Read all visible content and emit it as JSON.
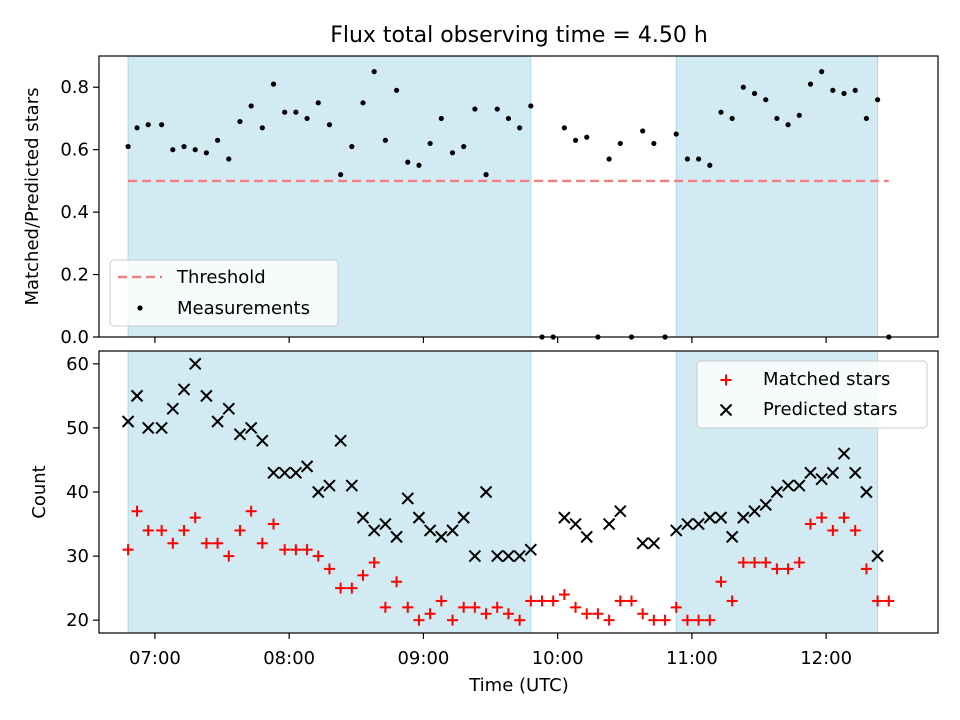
{
  "title": "Flux total observing time = 4.50 h",
  "colors": {
    "shade": "#add8e6",
    "threshold": "#f08080",
    "matched": "#ff0000",
    "predicted": "#000000"
  },
  "chart_data": [
    {
      "type": "scatter",
      "panel": "top",
      "title": "Flux total observing time = 4.50 h",
      "xlabel": "",
      "ylabel": "Matched/Predicted stars",
      "xlim": [
        "06:35",
        "12:50"
      ],
      "ylim": [
        0,
        0.9
      ],
      "yticks": [
        0.0,
        0.2,
        0.4,
        0.6,
        0.8
      ],
      "ytick_labels": [
        "0.0",
        "0.2",
        "0.4",
        "0.6",
        "0.8"
      ],
      "legend": {
        "placement": "lower-left",
        "entries": [
          "Threshold",
          "Measurements"
        ]
      },
      "shaded_intervals": [
        [
          "06:48",
          "09:48"
        ],
        [
          "10:53",
          "12:23"
        ]
      ],
      "threshold": {
        "name": "Threshold",
        "y": 0.5,
        "x_range": [
          "06:48",
          "12:28"
        ]
      },
      "series": [
        {
          "name": "Measurements",
          "points": [
            [
              "06:48",
              0.61
            ],
            [
              "06:52",
              0.67
            ],
            [
              "06:57",
              0.68
            ],
            [
              "07:03",
              0.68
            ],
            [
              "07:08",
              0.6
            ],
            [
              "07:13",
              0.61
            ],
            [
              "07:18",
              0.6
            ],
            [
              "07:23",
              0.59
            ],
            [
              "07:28",
              0.63
            ],
            [
              "07:33",
              0.57
            ],
            [
              "07:38",
              0.69
            ],
            [
              "07:43",
              0.74
            ],
            [
              "07:48",
              0.67
            ],
            [
              "07:53",
              0.81
            ],
            [
              "07:58",
              0.72
            ],
            [
              "08:03",
              0.72
            ],
            [
              "08:08",
              0.7
            ],
            [
              "08:13",
              0.75
            ],
            [
              "08:18",
              0.68
            ],
            [
              "08:23",
              0.52
            ],
            [
              "08:28",
              0.61
            ],
            [
              "08:33",
              0.75
            ],
            [
              "08:38",
              0.85
            ],
            [
              "08:43",
              0.63
            ],
            [
              "08:48",
              0.79
            ],
            [
              "08:53",
              0.56
            ],
            [
              "08:58",
              0.55
            ],
            [
              "09:03",
              0.62
            ],
            [
              "09:08",
              0.7
            ],
            [
              "09:13",
              0.59
            ],
            [
              "09:18",
              0.61
            ],
            [
              "09:23",
              0.73
            ],
            [
              "09:28",
              0.52
            ],
            [
              "09:33",
              0.73
            ],
            [
              "09:38",
              0.7
            ],
            [
              "09:43",
              0.67
            ],
            [
              "09:48",
              0.74
            ],
            [
              "09:53",
              0.0
            ],
            [
              "09:58",
              0.0
            ],
            [
              "10:03",
              0.67
            ],
            [
              "10:08",
              0.63
            ],
            [
              "10:13",
              0.64
            ],
            [
              "10:18",
              0.0
            ],
            [
              "10:23",
              0.57
            ],
            [
              "10:28",
              0.62
            ],
            [
              "10:33",
              0.0
            ],
            [
              "10:38",
              0.66
            ],
            [
              "10:43",
              0.62
            ],
            [
              "10:48",
              0.0
            ],
            [
              "10:53",
              0.65
            ],
            [
              "10:58",
              0.57
            ],
            [
              "11:03",
              0.57
            ],
            [
              "11:08",
              0.55
            ],
            [
              "11:13",
              0.72
            ],
            [
              "11:18",
              0.7
            ],
            [
              "11:23",
              0.8
            ],
            [
              "11:28",
              0.78
            ],
            [
              "11:33",
              0.76
            ],
            [
              "11:38",
              0.7
            ],
            [
              "11:43",
              0.68
            ],
            [
              "11:48",
              0.71
            ],
            [
              "11:53",
              0.81
            ],
            [
              "11:58",
              0.85
            ],
            [
              "12:03",
              0.79
            ],
            [
              "12:08",
              0.78
            ],
            [
              "12:13",
              0.79
            ],
            [
              "12:18",
              0.7
            ],
            [
              "12:23",
              0.76
            ],
            [
              "12:28",
              0.0
            ]
          ]
        }
      ]
    },
    {
      "type": "scatter",
      "panel": "bottom",
      "title": "",
      "xlabel": "Time (UTC)",
      "ylabel": "Count",
      "xlim": [
        "06:35",
        "12:50"
      ],
      "ylim": [
        18,
        62
      ],
      "xticks": [
        "07:00",
        "08:00",
        "09:00",
        "10:00",
        "11:00",
        "12:00"
      ],
      "yticks": [
        20,
        30,
        40,
        50,
        60
      ],
      "ytick_labels": [
        "20",
        "30",
        "40",
        "50",
        "60"
      ],
      "legend": {
        "placement": "upper-right",
        "entries": [
          "Matched stars",
          "Predicted stars"
        ]
      },
      "shaded_intervals": [
        [
          "06:48",
          "09:48"
        ],
        [
          "10:53",
          "12:23"
        ]
      ],
      "series": [
        {
          "name": "Matched stars",
          "marker": "plus",
          "points": [
            [
              "06:48",
              31
            ],
            [
              "06:52",
              37
            ],
            [
              "06:57",
              34
            ],
            [
              "07:03",
              34
            ],
            [
              "07:08",
              32
            ],
            [
              "07:13",
              34
            ],
            [
              "07:18",
              36
            ],
            [
              "07:23",
              32
            ],
            [
              "07:28",
              32
            ],
            [
              "07:33",
              30
            ],
            [
              "07:38",
              34
            ],
            [
              "07:43",
              37
            ],
            [
              "07:48",
              32
            ],
            [
              "07:53",
              35
            ],
            [
              "07:58",
              31
            ],
            [
              "08:03",
              31
            ],
            [
              "08:08",
              31
            ],
            [
              "08:13",
              30
            ],
            [
              "08:18",
              28
            ],
            [
              "08:23",
              25
            ],
            [
              "08:28",
              25
            ],
            [
              "08:33",
              27
            ],
            [
              "08:38",
              29
            ],
            [
              "08:43",
              22
            ],
            [
              "08:48",
              26
            ],
            [
              "08:53",
              22
            ],
            [
              "08:58",
              20
            ],
            [
              "09:03",
              21
            ],
            [
              "09:08",
              23
            ],
            [
              "09:13",
              20
            ],
            [
              "09:18",
              22
            ],
            [
              "09:23",
              22
            ],
            [
              "09:28",
              21
            ],
            [
              "09:33",
              22
            ],
            [
              "09:38",
              21
            ],
            [
              "09:43",
              20
            ],
            [
              "09:48",
              23
            ],
            [
              "09:53",
              23
            ],
            [
              "09:58",
              23
            ],
            [
              "10:03",
              24
            ],
            [
              "10:08",
              22
            ],
            [
              "10:13",
              21
            ],
            [
              "10:18",
              21
            ],
            [
              "10:23",
              20
            ],
            [
              "10:28",
              23
            ],
            [
              "10:33",
              23
            ],
            [
              "10:38",
              21
            ],
            [
              "10:43",
              20
            ],
            [
              "10:48",
              20
            ],
            [
              "10:53",
              22
            ],
            [
              "10:58",
              20
            ],
            [
              "11:03",
              20
            ],
            [
              "11:08",
              20
            ],
            [
              "11:13",
              26
            ],
            [
              "11:18",
              23
            ],
            [
              "11:23",
              29
            ],
            [
              "11:28",
              29
            ],
            [
              "11:33",
              29
            ],
            [
              "11:38",
              28
            ],
            [
              "11:43",
              28
            ],
            [
              "11:48",
              29
            ],
            [
              "11:53",
              35
            ],
            [
              "11:58",
              36
            ],
            [
              "12:03",
              34
            ],
            [
              "12:08",
              36
            ],
            [
              "12:13",
              34
            ],
            [
              "12:18",
              28
            ],
            [
              "12:23",
              23
            ],
            [
              "12:28",
              23
            ]
          ]
        },
        {
          "name": "Predicted stars",
          "marker": "cross",
          "points": [
            [
              "06:48",
              51
            ],
            [
              "06:52",
              55
            ],
            [
              "06:57",
              50
            ],
            [
              "07:03",
              50
            ],
            [
              "07:08",
              53
            ],
            [
              "07:13",
              56
            ],
            [
              "07:18",
              60
            ],
            [
              "07:23",
              55
            ],
            [
              "07:28",
              51
            ],
            [
              "07:33",
              53
            ],
            [
              "07:38",
              49
            ],
            [
              "07:43",
              50
            ],
            [
              "07:48",
              48
            ],
            [
              "07:53",
              43
            ],
            [
              "07:58",
              43
            ],
            [
              "08:03",
              43
            ],
            [
              "08:08",
              44
            ],
            [
              "08:13",
              40
            ],
            [
              "08:18",
              41
            ],
            [
              "08:23",
              48
            ],
            [
              "08:28",
              41
            ],
            [
              "08:33",
              36
            ],
            [
              "08:38",
              34
            ],
            [
              "08:43",
              35
            ],
            [
              "08:48",
              33
            ],
            [
              "08:53",
              39
            ],
            [
              "08:58",
              36
            ],
            [
              "09:03",
              34
            ],
            [
              "09:08",
              33
            ],
            [
              "09:13",
              34
            ],
            [
              "09:18",
              36
            ],
            [
              "09:23",
              30
            ],
            [
              "09:28",
              40
            ],
            [
              "09:33",
              30
            ],
            [
              "09:38",
              30
            ],
            [
              "09:43",
              30
            ],
            [
              "09:48",
              31
            ],
            [
              "10:03",
              36
            ],
            [
              "10:08",
              35
            ],
            [
              "10:13",
              33
            ],
            [
              "10:23",
              35
            ],
            [
              "10:28",
              37
            ],
            [
              "10:38",
              32
            ],
            [
              "10:43",
              32
            ],
            [
              "10:53",
              34
            ],
            [
              "10:58",
              35
            ],
            [
              "11:03",
              35
            ],
            [
              "11:08",
              36
            ],
            [
              "11:13",
              36
            ],
            [
              "11:18",
              33
            ],
            [
              "11:23",
              36
            ],
            [
              "11:28",
              37
            ],
            [
              "11:33",
              38
            ],
            [
              "11:38",
              40
            ],
            [
              "11:43",
              41
            ],
            [
              "11:48",
              41
            ],
            [
              "11:53",
              43
            ],
            [
              "11:58",
              42
            ],
            [
              "12:03",
              43
            ],
            [
              "12:08",
              46
            ],
            [
              "12:13",
              43
            ],
            [
              "12:18",
              40
            ],
            [
              "12:23",
              30
            ]
          ]
        }
      ]
    }
  ]
}
